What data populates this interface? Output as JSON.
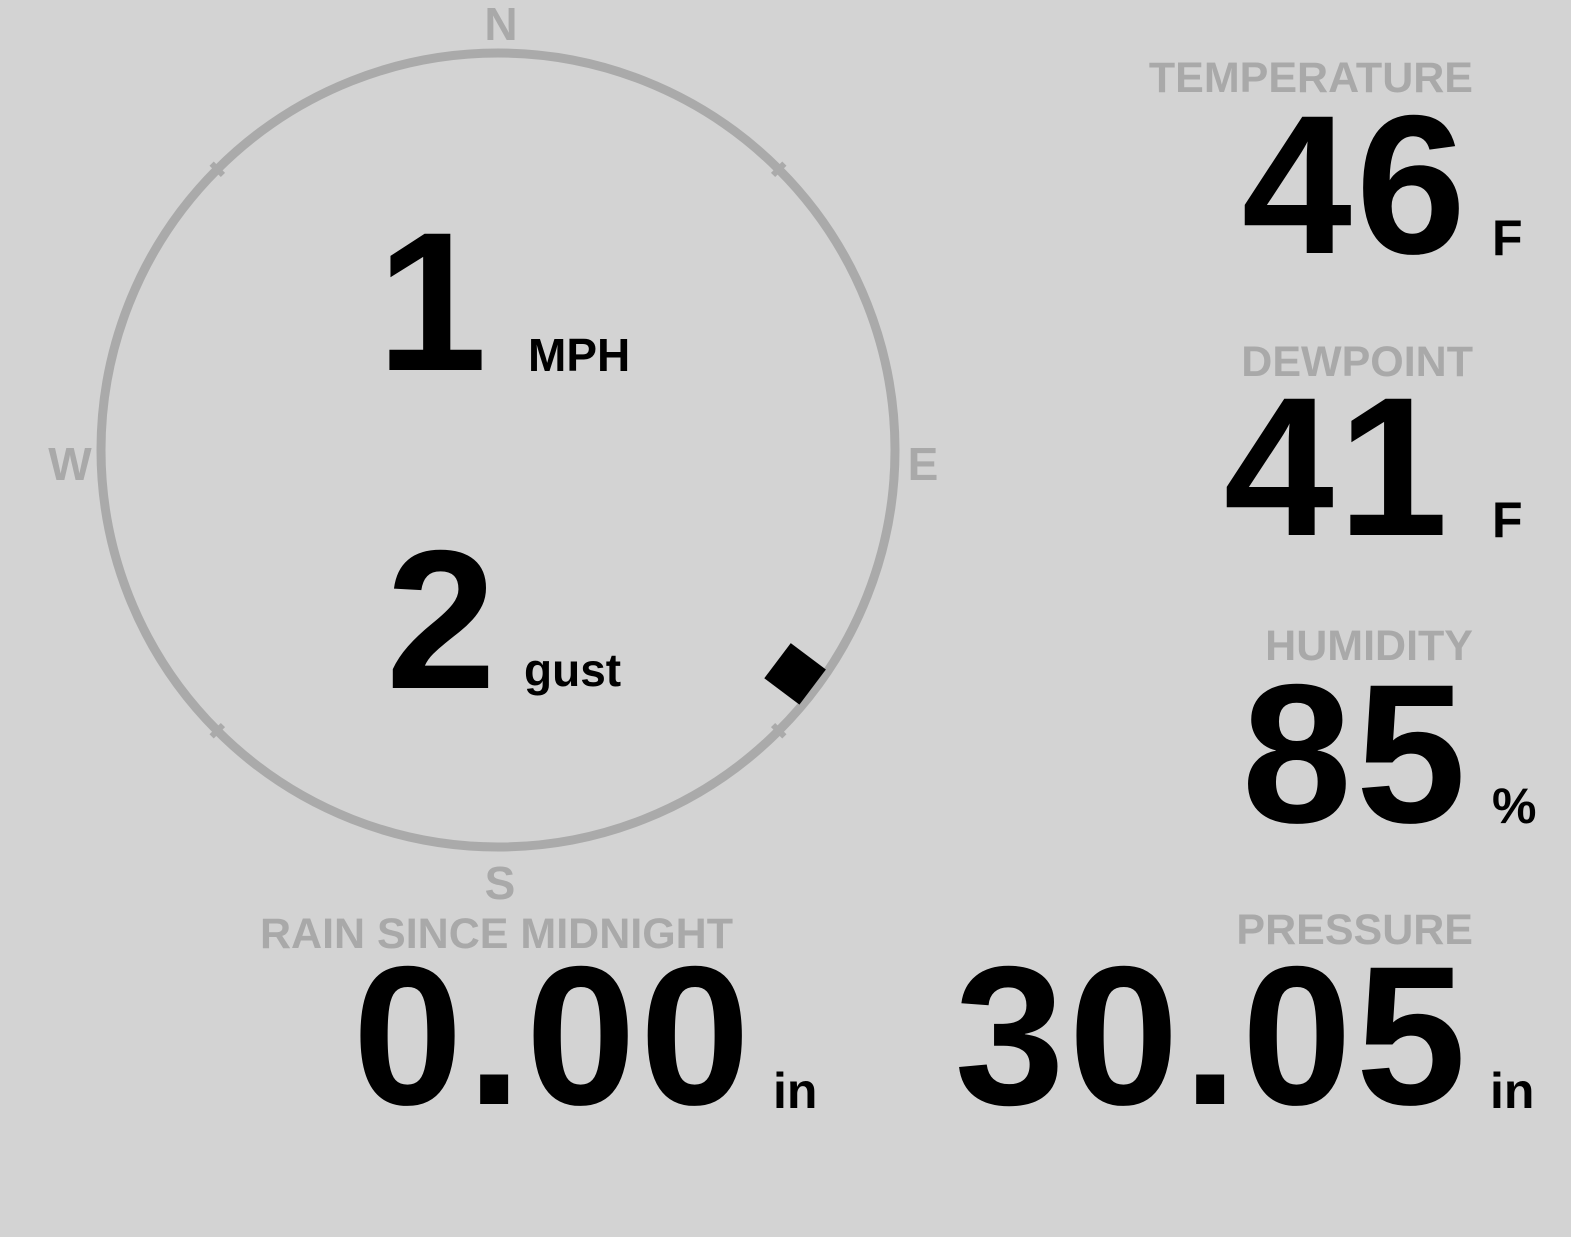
{
  "colors": {
    "background": "#d3d3d3",
    "label": "#a9a9a9",
    "value": "#000000",
    "compass_ring": "#aaaaaa"
  },
  "compass": {
    "north": "N",
    "east": "E",
    "south": "S",
    "west": "W",
    "wind_direction_deg": 127,
    "speed": {
      "value": "1",
      "unit": "MPH"
    },
    "gust": {
      "value": "2",
      "unit": "gust"
    }
  },
  "temperature": {
    "label": "TEMPERATURE",
    "value": "46",
    "unit": "F"
  },
  "dewpoint": {
    "label": "DEWPOINT",
    "value": "41",
    "unit": "F"
  },
  "humidity": {
    "label": "HUMIDITY",
    "value": "85",
    "unit": "%"
  },
  "rain": {
    "label": "RAIN SINCE MIDNIGHT",
    "value": "0.00",
    "unit": "in"
  },
  "pressure": {
    "label": "PRESSURE",
    "value": "30.05",
    "unit": "in"
  }
}
